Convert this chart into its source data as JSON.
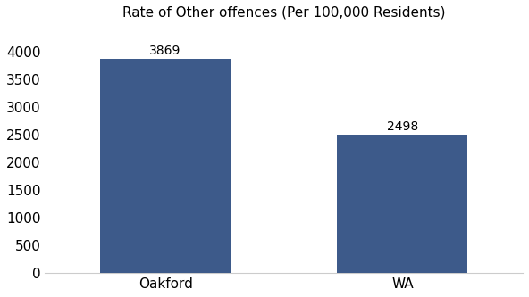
{
  "categories": [
    "Oakford",
    "WA"
  ],
  "values": [
    3869,
    2498
  ],
  "bar_color": "#3d5a8a",
  "title": "Rate of Other offences (Per 100,000 Residents)",
  "title_fontsize": 11,
  "title_fontweight": "normal",
  "label_fontsize": 11,
  "value_fontsize": 10,
  "ylim": [
    0,
    4400
  ],
  "yticks": [
    0,
    500,
    1000,
    1500,
    2000,
    2500,
    3000,
    3500,
    4000
  ],
  "background_color": "#ffffff",
  "bar_width": 0.55
}
